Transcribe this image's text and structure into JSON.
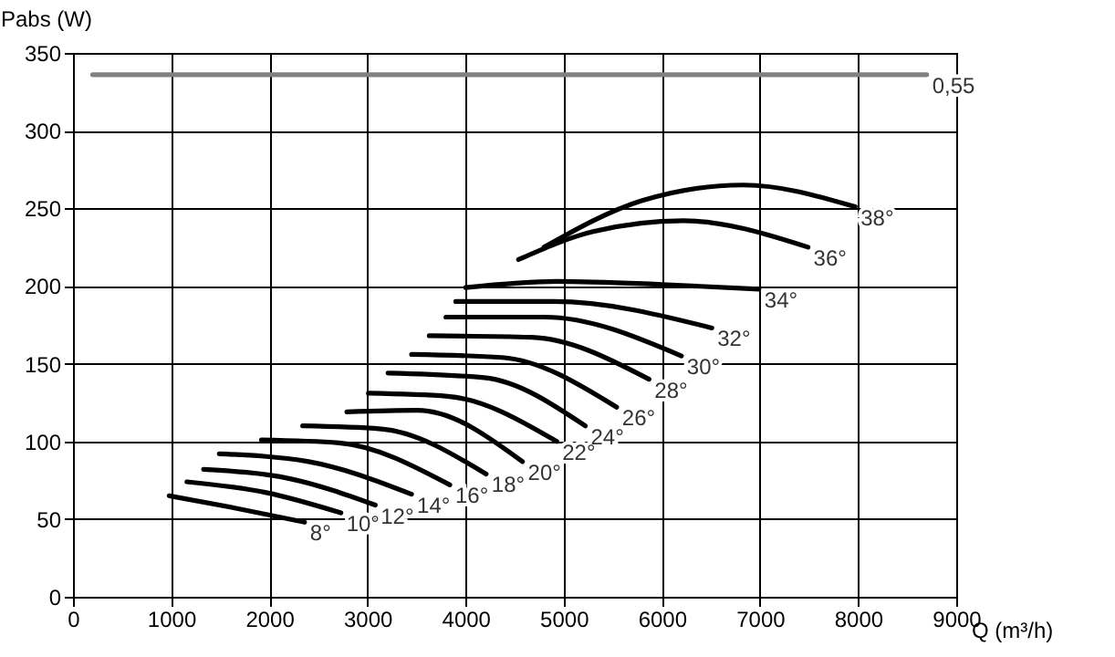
{
  "chart_data": {
    "type": "line",
    "xlabel": "Q (m³/h)",
    "ylabel": "Pabs (W)",
    "xlim": [
      0,
      9000
    ],
    "xticks": [
      0,
      1000,
      2000,
      3000,
      4000,
      5000,
      6000,
      7000,
      8000,
      9000
    ],
    "ylim": [
      0,
      350
    ],
    "yticks": [
      0,
      50,
      100,
      150,
      200,
      250,
      300,
      350
    ],
    "grid": true,
    "legend": false,
    "marker": "none",
    "line_style": "solid",
    "series": [
      {
        "name": "0,55",
        "color": "#808080",
        "x": [
          200,
          8700
        ],
        "values": [
          336,
          336
        ]
      },
      {
        "name": "8°",
        "color": "#000000",
        "x": [
          980,
          1660,
          2360
        ],
        "values": [
          65,
          57,
          48
        ]
      },
      {
        "name": "10°",
        "color": "#000000",
        "x": [
          1160,
          1970,
          2730
        ],
        "values": [
          74,
          67,
          54
        ]
      },
      {
        "name": "12°",
        "color": "#000000",
        "x": [
          1330,
          2210,
          3080
        ],
        "values": [
          82,
          76,
          59
        ]
      },
      {
        "name": "14°",
        "color": "#000000",
        "x": [
          1490,
          2400,
          3450
        ],
        "values": [
          92,
          87,
          66
        ]
      },
      {
        "name": "16°",
        "color": "#000000",
        "x": [
          1920,
          2710,
          3840
        ],
        "values": [
          101,
          99,
          72
        ]
      },
      {
        "name": "18°",
        "color": "#000000",
        "x": [
          2340,
          3140,
          4210
        ],
        "values": [
          110,
          108,
          79
        ]
      },
      {
        "name": "20°",
        "color": "#000000",
        "x": [
          2790,
          3510,
          4580
        ],
        "values": [
          119,
          120,
          87
        ]
      },
      {
        "name": "22°",
        "color": "#000000",
        "x": [
          3010,
          3820,
          4930
        ],
        "values": [
          131,
          129,
          100
        ]
      },
      {
        "name": "24°",
        "color": "#000000",
        "x": [
          3210,
          4190,
          5220
        ],
        "values": [
          144,
          141,
          110
        ]
      },
      {
        "name": "26°",
        "color": "#000000",
        "x": [
          3450,
          4370,
          5540
        ],
        "values": [
          156,
          154,
          122
        ]
      },
      {
        "name": "28°",
        "color": "#000000",
        "x": [
          3630,
          4670,
          5870
        ],
        "values": [
          168,
          167,
          140
        ]
      },
      {
        "name": "30°",
        "color": "#000000",
        "x": [
          3800,
          4800,
          6200
        ],
        "values": [
          180,
          180,
          155
        ]
      },
      {
        "name": "32°",
        "color": "#000000",
        "x": [
          3900,
          4900,
          6510
        ],
        "values": [
          190,
          190,
          173
        ]
      },
      {
        "name": "34°",
        "color": "#000000",
        "x": [
          4000,
          4930,
          6000,
          6990
        ],
        "values": [
          199,
          203,
          201,
          198
        ]
      },
      {
        "name": "36°",
        "color": "#000000",
        "x": [
          4540,
          5300,
          6220,
          7490
        ],
        "values": [
          217,
          235,
          242,
          225
        ]
      },
      {
        "name": "38°",
        "color": "#000000",
        "x": [
          4800,
          5800,
          6830,
          7970
        ],
        "values": [
          225,
          255,
          265,
          251
        ]
      }
    ]
  }
}
